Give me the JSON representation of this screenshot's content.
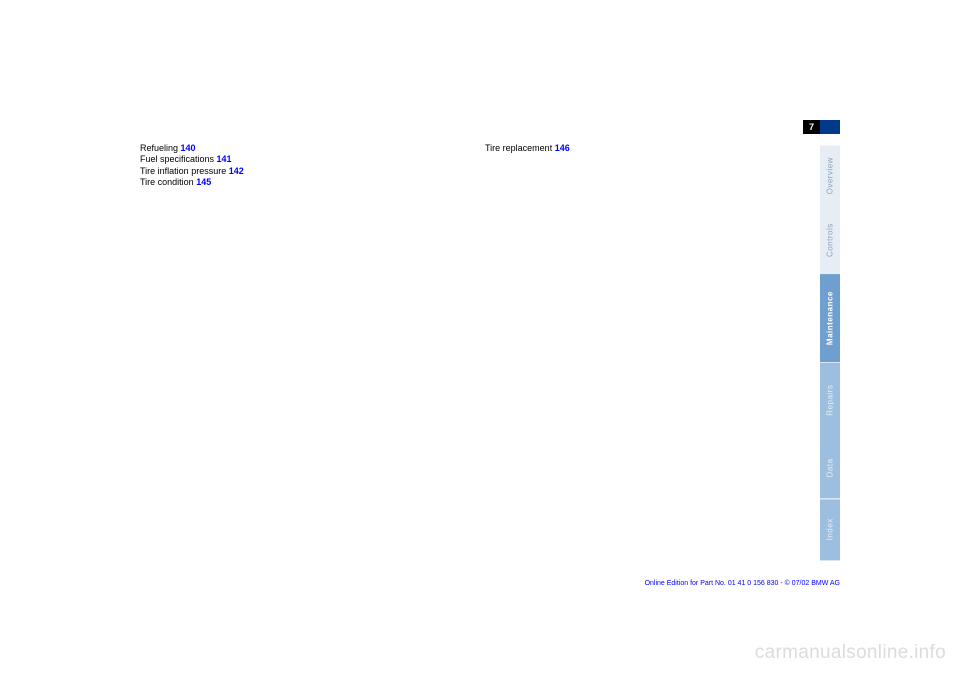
{
  "pageNumber": "7",
  "leftColumn": [
    {
      "text": "Refueling",
      "page": "140"
    },
    {
      "text": "Fuel specifications",
      "page": "141"
    },
    {
      "text": "Tire inflation pressure",
      "page": "142"
    },
    {
      "text": "Tire condition",
      "page": "145"
    }
  ],
  "rightColumn": [
    {
      "text": "Tire replacement",
      "page": "146"
    }
  ],
  "tabs": [
    {
      "label": "Overview",
      "cls": "tab-overview"
    },
    {
      "label": "Controls",
      "cls": "tab-controls"
    },
    {
      "label": "Maintenance",
      "cls": "tab-maintenance"
    },
    {
      "label": "Repairs",
      "cls": "tab-repairs"
    },
    {
      "label": "Data",
      "cls": "tab-data"
    },
    {
      "label": "Index",
      "cls": "tab-index"
    }
  ],
  "footer": "Online Edition for Part No. 01 41 0 156 830 - © 07/02 BMW AG",
  "watermark": "carmanualsonline.info",
  "colors": {
    "link": "#0000ff",
    "tabActiveBg": "#6e9fcf",
    "tabInactiveBg": "#9dbfdf",
    "tabLightBg": "#e6edf5",
    "pageBadgeBlue": "#003a8a"
  }
}
